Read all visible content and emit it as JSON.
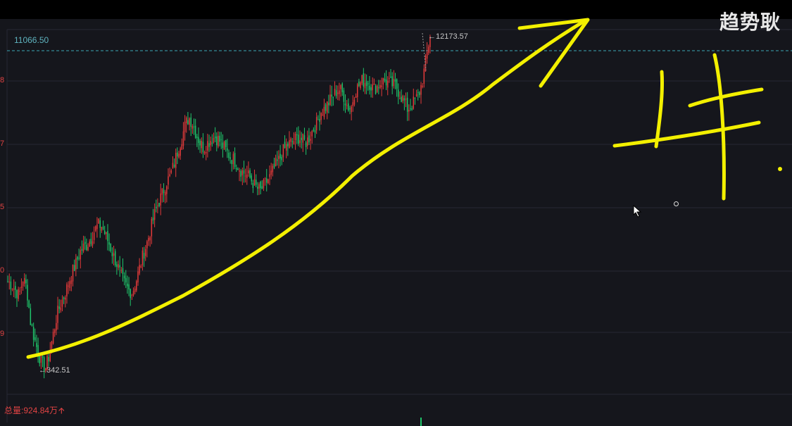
{
  "watermark": "趋势耿",
  "price_line_label": "11066.50",
  "high_label": "←12173.57",
  "low_label": "←342.51",
  "volume_label": "总量:924.84万",
  "volume_arrow": "🡩",
  "y_ticks": [
    "8",
    "7",
    "5",
    "0",
    "9"
  ],
  "colors": {
    "up": "#e23a3a",
    "down": "#1fc46a",
    "annotation": "#f3f000",
    "price_line": "#3ba7b5",
    "grid": "#262833"
  },
  "icons": [
    "cursor-icon"
  ],
  "chart_data": {
    "type": "candlestick",
    "title": "",
    "xlabel": "",
    "ylabel": "",
    "ylim": [
      280,
      12300
    ],
    "grid": true,
    "reference_line": 11066.5,
    "high": 12173.57,
    "low": 342.51,
    "close_path": [
      3400,
      3300,
      3100,
      2900,
      3500,
      3200,
      2000,
      1400,
      900,
      500,
      350,
      800,
      1500,
      2200,
      2600,
      2900,
      3300,
      3700,
      4000,
      4400,
      4600,
      4700,
      4900,
      5200,
      5400,
      5350,
      5000,
      4700,
      4300,
      4000,
      3600,
      3300,
      3100,
      3000,
      3400,
      3900,
      4400,
      4800,
      5300,
      5800,
      6200,
      6500,
      6900,
      7100,
      7500,
      8000,
      8400,
      8900,
      9200,
      9000,
      8600,
      8300,
      8100,
      8300,
      8450,
      8500,
      8400,
      8200,
      8000,
      7800,
      7700,
      7500,
      7300,
      7200,
      7100,
      6900,
      6700,
      6600,
      6800,
      7000,
      7200,
      7500,
      7700,
      8000,
      8200,
      8300,
      8400,
      8500,
      8400,
      8300,
      8500,
      8800,
      9000,
      9400,
      9500,
      9700,
      9900,
      10100,
      10200,
      10000,
      9600,
      9500,
      10100,
      10300,
      10500,
      10450,
      10400,
      10200,
      10300,
      10450,
      10500,
      10400,
      10350,
      10300,
      10000,
      9800,
      9500,
      9600,
      9800,
      10000,
      10500,
      11300,
      12100
    ]
  }
}
